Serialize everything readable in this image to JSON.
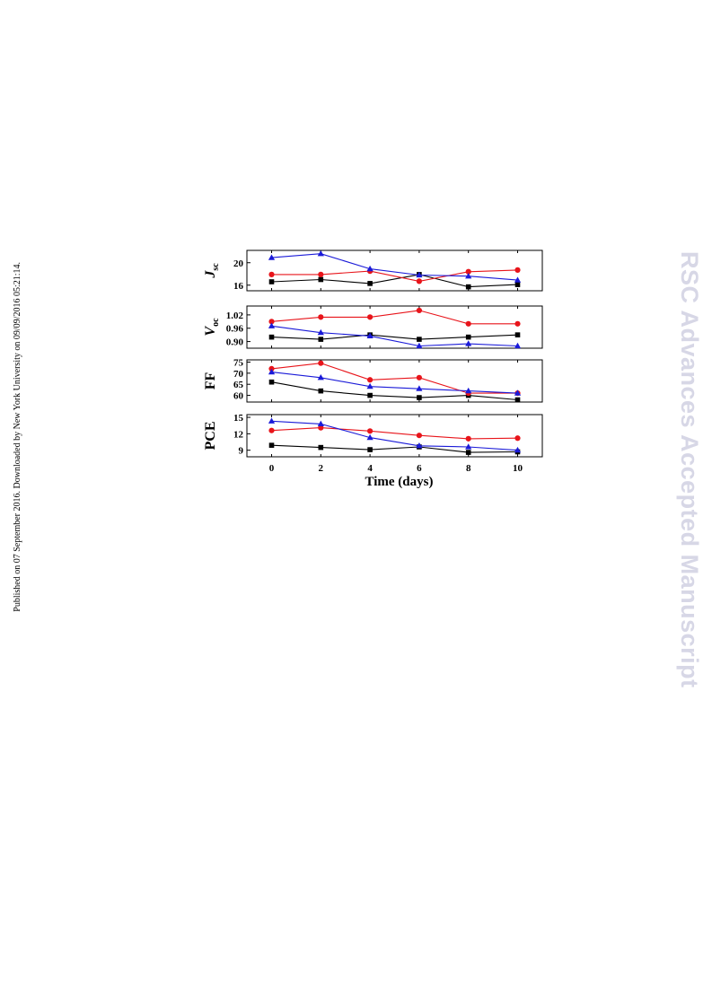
{
  "sidenote": "Published on 07 September 2016. Downloaded by New York University on 09/09/2016 05:21:14.",
  "watermark": "RSC Advances Accepted Manuscript",
  "chart_data": [
    {
      "type": "line",
      "ylabel": "J",
      "ylabel_sub": "sc",
      "x": [
        0,
        2,
        4,
        6,
        8,
        10
      ],
      "ylim": [
        15,
        22.2
      ],
      "yticks": [
        16,
        20
      ],
      "series": [
        {
          "color": "#000000",
          "marker": "square",
          "values": [
            16.6,
            17.0,
            16.3,
            17.9,
            15.7,
            16.1
          ]
        },
        {
          "color": "#e8141a",
          "marker": "circle",
          "values": [
            17.9,
            17.9,
            18.5,
            16.7,
            18.4,
            18.7
          ]
        },
        {
          "color": "#1a1ad8",
          "marker": "triangle",
          "values": [
            20.9,
            21.6,
            18.9,
            17.8,
            17.6,
            16.9
          ]
        }
      ]
    },
    {
      "type": "line",
      "ylabel": "V",
      "ylabel_sub": "oc",
      "x": [
        0,
        2,
        4,
        6,
        8,
        10
      ],
      "ylim": [
        0.87,
        1.06
      ],
      "yticks": [
        "0.90",
        "0.96",
        "1.02"
      ],
      "series": [
        {
          "color": "#000000",
          "marker": "square",
          "values": [
            0.92,
            0.91,
            0.93,
            0.91,
            0.92,
            0.93
          ]
        },
        {
          "color": "#e8141a",
          "marker": "circle",
          "values": [
            0.99,
            1.01,
            1.01,
            1.04,
            0.98,
            0.98
          ]
        },
        {
          "color": "#1a1ad8",
          "marker": "triangle",
          "values": [
            0.97,
            0.94,
            0.925,
            0.88,
            0.89,
            0.88
          ]
        }
      ]
    },
    {
      "type": "line",
      "ylabel": "FF",
      "x": [
        0,
        2,
        4,
        6,
        8,
        10
      ],
      "ylim": [
        57,
        76
      ],
      "yticks": [
        60,
        65,
        70,
        75
      ],
      "series": [
        {
          "color": "#000000",
          "marker": "square",
          "values": [
            66,
            62,
            60,
            59,
            60,
            58
          ]
        },
        {
          "color": "#e8141a",
          "marker": "circle",
          "values": [
            72,
            74.5,
            67,
            68,
            61,
            61
          ]
        },
        {
          "color": "#1a1ad8",
          "marker": "triangle",
          "values": [
            70.5,
            68,
            64,
            63,
            62,
            61
          ]
        }
      ]
    },
    {
      "type": "line",
      "ylabel": "PCE",
      "xlabel": "Time (days)",
      "x": [
        0,
        2,
        4,
        6,
        8,
        10
      ],
      "ylim": [
        7.8,
        15.5
      ],
      "yticks": [
        9,
        12,
        15
      ],
      "xticks": [
        0,
        2,
        4,
        6,
        8,
        10
      ],
      "series": [
        {
          "color": "#000000",
          "marker": "square",
          "values": [
            9.9,
            9.5,
            9.1,
            9.6,
            8.6,
            8.7
          ]
        },
        {
          "color": "#e8141a",
          "marker": "circle",
          "values": [
            12.6,
            13.1,
            12.5,
            11.7,
            11.1,
            11.2
          ]
        },
        {
          "color": "#1a1ad8",
          "marker": "triangle",
          "values": [
            14.3,
            13.8,
            11.3,
            9.8,
            9.6,
            9.0
          ]
        }
      ]
    }
  ]
}
